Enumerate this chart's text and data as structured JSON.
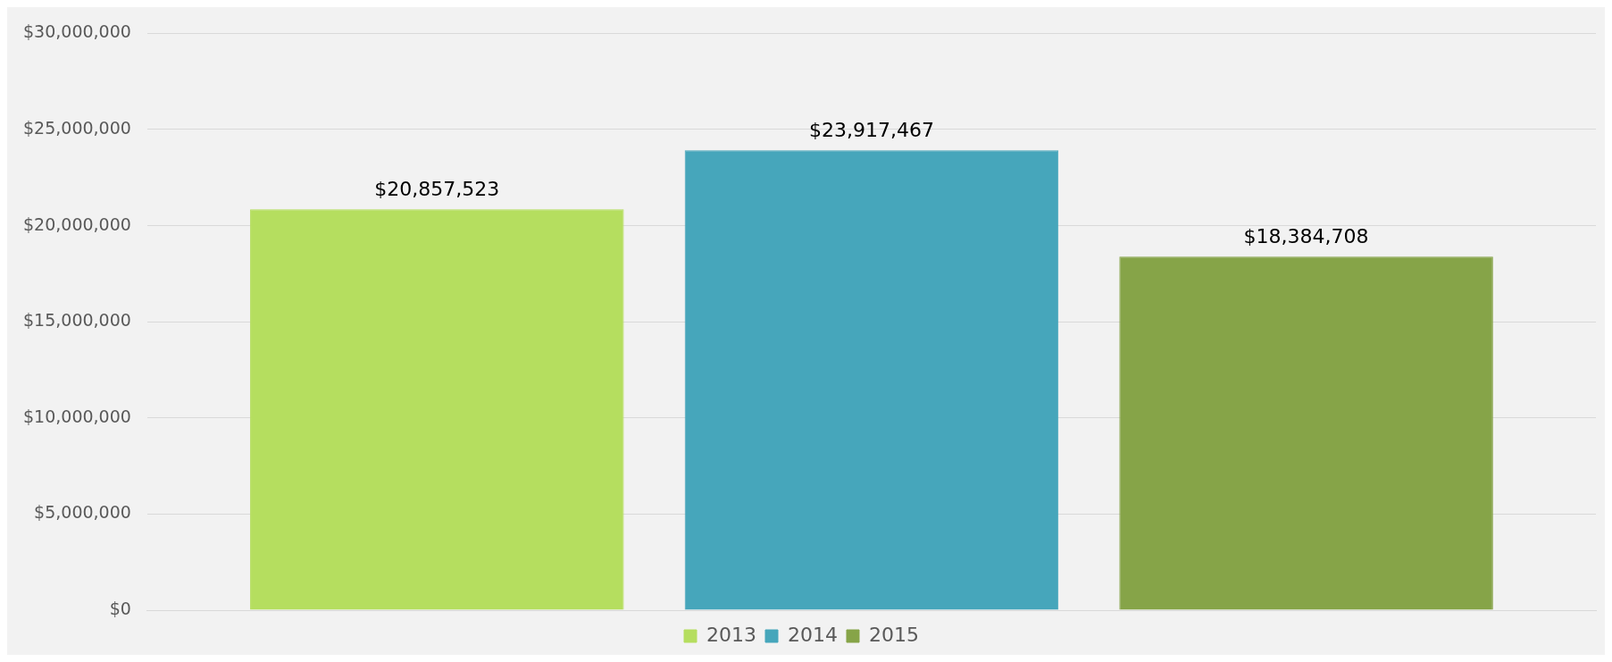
{
  "chart_data": {
    "type": "bar",
    "categories": [
      null
    ],
    "series": [
      {
        "name": "2013",
        "color": "#b5de5f",
        "values": [
          20857523
        ],
        "value_labels": [
          "$20,857,523"
        ]
      },
      {
        "name": "2014",
        "color": "#46a6bb",
        "values": [
          23917467
        ],
        "value_labels": [
          "$23,917,467"
        ]
      },
      {
        "name": "2015",
        "color": "#86a448",
        "values": [
          18384708
        ],
        "value_labels": [
          "$18,384,708"
        ]
      }
    ],
    "ylim": [
      0,
      30000000
    ],
    "yticks": [
      {
        "value": 0,
        "label": "$0"
      },
      {
        "value": 5000000,
        "label": "$5,000,000"
      },
      {
        "value": 10000000,
        "label": "$10,000,000"
      },
      {
        "value": 15000000,
        "label": "$15,000,000"
      },
      {
        "value": 20000000,
        "label": "$20,000,000"
      },
      {
        "value": 25000000,
        "label": "$25,000,000"
      },
      {
        "value": 30000000,
        "label": "$30,000,000"
      }
    ],
    "grid": "y",
    "legend": "bottom"
  }
}
